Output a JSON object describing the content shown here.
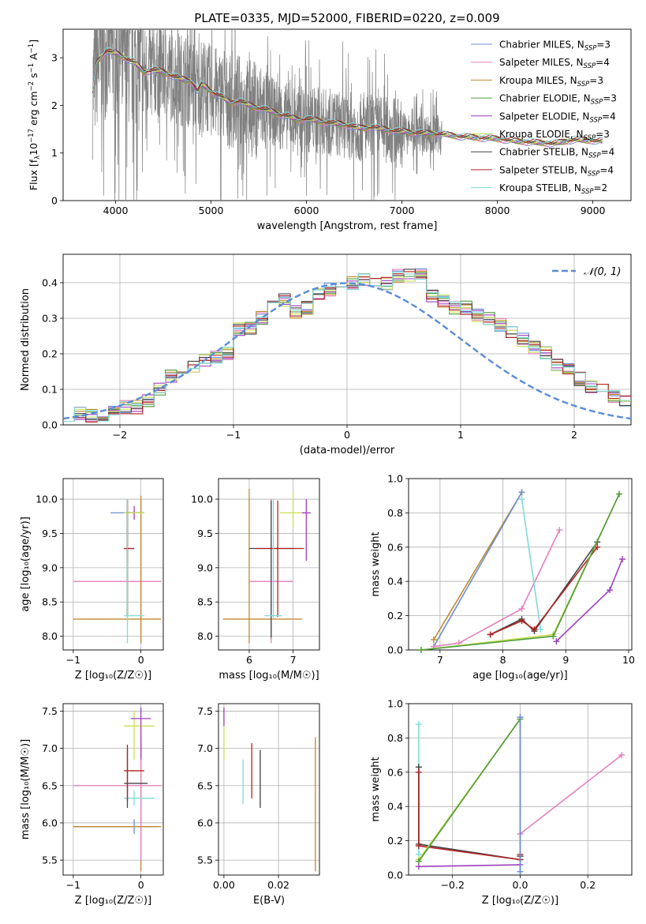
{
  "figure": {
    "title": "PLATE=0335, MJD=52000, FIBERID=0220, z=0.009"
  },
  "series_colors": {
    "Chabrier MILES": "#6b8fd6",
    "Salpeter MILES": "#e57fbf",
    "Kroupa MILES": "#c08a2a",
    "Chabrier ELODIE": "#4f9a3a",
    "Salpeter ELODIE": "#9f3fbf",
    "Kroupa ELODIE": "#c8e050",
    "Chabrier STELIB": "#444444",
    "Salpeter STELIB": "#b22222",
    "Kroupa STELIB": "#7fdada",
    "data": "#808080",
    "gaussian": "#5b8bd6"
  },
  "chart_data": [
    {
      "id": "spectrum",
      "type": "line",
      "title": "PLATE=0335, MJD=52000, FIBERID=0220, z=0.009",
      "xlabel": "wavelength [Angstrom, rest frame]",
      "ylabel_parts": {
        "main": "Flux [f",
        "sub": "λ",
        "mid": "10",
        "sup1": "−17",
        "rest": " erg cm",
        "sup2": "−2",
        "rest2": " s",
        "sup3": "−1",
        "rest3": " A",
        "sup4": "−1",
        "close": "]"
      },
      "xlim": [
        3450,
        9400
      ],
      "ylim": [
        0,
        3.6
      ],
      "xticks": [
        4000,
        5000,
        6000,
        7000,
        8000,
        9000
      ],
      "yticks": [
        0,
        1,
        2,
        3
      ],
      "legend": [
        {
          "name": "Chabrier MILES",
          "n": "3"
        },
        {
          "name": "Salpeter MILES",
          "n": "4"
        },
        {
          "name": "Kroupa MILES",
          "n": "3"
        },
        {
          "name": "Chabrier ELODIE",
          "n": "3"
        },
        {
          "name": "Salpeter ELODIE",
          "n": "4"
        },
        {
          "name": "Kroupa ELODIE",
          "n": "3"
        },
        {
          "name": "Chabrier STELIB",
          "n": "4"
        },
        {
          "name": "Salpeter STELIB",
          "n": "4"
        },
        {
          "name": "Kroupa STELIB",
          "n": "2"
        }
      ],
      "legend_sub": "SSP",
      "legend_placement": "upper-right",
      "model_continuum": [
        [
          3760,
          2.3
        ],
        [
          3800,
          2.9
        ],
        [
          3900,
          3.15
        ],
        [
          4000,
          3.1
        ],
        [
          4100,
          3.0
        ],
        [
          4200,
          2.9
        ],
        [
          4300,
          2.7
        ],
        [
          4400,
          2.75
        ],
        [
          4500,
          2.7
        ],
        [
          4600,
          2.62
        ],
        [
          4700,
          2.55
        ],
        [
          4800,
          2.5
        ],
        [
          4860,
          2.3
        ],
        [
          4900,
          2.45
        ],
        [
          5000,
          2.3
        ],
        [
          5100,
          2.2
        ],
        [
          5200,
          2.05
        ],
        [
          5300,
          2.1
        ],
        [
          5400,
          2.0
        ],
        [
          5500,
          1.95
        ],
        [
          5600,
          1.9
        ],
        [
          5700,
          1.82
        ],
        [
          5800,
          1.78
        ],
        [
          5900,
          1.7
        ],
        [
          6000,
          1.72
        ],
        [
          6200,
          1.65
        ],
        [
          6400,
          1.6
        ],
        [
          6563,
          1.52
        ],
        [
          6700,
          1.55
        ],
        [
          6800,
          1.5
        ],
        [
          7000,
          1.45
        ],
        [
          7200,
          1.42
        ],
        [
          7400,
          1.4
        ],
        [
          7600,
          1.35
        ],
        [
          7800,
          1.32
        ],
        [
          8000,
          1.3
        ],
        [
          8200,
          1.25
        ],
        [
          8400,
          1.22
        ],
        [
          8600,
          1.2
        ],
        [
          8800,
          1.28
        ],
        [
          9000,
          1.26
        ],
        [
          9100,
          1.25
        ]
      ]
    },
    {
      "id": "residuals",
      "type": "step",
      "xlabel": "(data-model)/error",
      "ylabel": "Normed distribution",
      "xlim": [
        -2.5,
        2.5
      ],
      "ylim": [
        0,
        0.48
      ],
      "xticks": [
        -2,
        -1,
        0,
        1,
        2
      ],
      "xtick_labels": [
        "−2",
        "−1",
        "0",
        "1",
        "2"
      ],
      "yticks": [
        0,
        0.1,
        0.2,
        0.3,
        0.4
      ],
      "ytick_labels": [
        "0.0",
        "0.1",
        "0.2",
        "0.3",
        "0.4"
      ],
      "grid": true,
      "legend": [
        {
          "name": "𝒩(0, 1)"
        }
      ],
      "legend_placement": "upper-right",
      "bin_edges_start": -2.5,
      "bin_width": 0.1,
      "histogram_base": [
        0.03,
        0.03,
        0.025,
        0.03,
        0.04,
        0.05,
        0.05,
        0.07,
        0.1,
        0.14,
        0.14,
        0.16,
        0.18,
        0.19,
        0.2,
        0.27,
        0.27,
        0.3,
        0.34,
        0.35,
        0.32,
        0.33,
        0.37,
        0.38,
        0.39,
        0.4,
        0.41,
        0.41,
        0.4,
        0.42,
        0.42,
        0.42,
        0.36,
        0.35,
        0.33,
        0.33,
        0.31,
        0.3,
        0.28,
        0.26,
        0.24,
        0.22,
        0.2,
        0.17,
        0.16,
        0.13,
        0.11,
        0.1,
        0.08,
        0.07
      ]
    },
    {
      "id": "age_vs_Z",
      "type": "errorbar",
      "xlabel": "Z [log₁₀(Z/Z☉)]",
      "ylabel": "age  [log₁₀(age/yr)]",
      "xlim": [
        -1.15,
        0.33
      ],
      "ylim": [
        7.8,
        10.3
      ],
      "xticks": [
        -1,
        0
      ],
      "xtick_labels": [
        "−1",
        "0"
      ],
      "yticks": [
        8.0,
        8.5,
        9.0,
        9.5,
        10.0
      ],
      "ytick_labels": [
        "8.0",
        "8.5",
        "9.0",
        "9.5",
        "10.0"
      ],
      "points": [
        {
          "s": "Chabrier MILES",
          "x": -0.2,
          "y": 9.8,
          "xe": [
            -0.25,
            0.25
          ],
          "ye": [
            -1.5,
            0.2
          ]
        },
        {
          "s": "Salpeter MILES",
          "x": 0.0,
          "y": 8.8,
          "xe": [
            -1.0,
            0.3
          ],
          "ye": [
            -0.9,
            1.2
          ]
        },
        {
          "s": "Kroupa MILES",
          "x": 0.0,
          "y": 8.25,
          "xe": [
            -1.0,
            0.3
          ],
          "ye": [
            -0.35,
            1.8
          ]
        },
        {
          "s": "Chabrier ELODIE",
          "x": -0.2,
          "y": 9.8,
          "xe": [
            -0.05,
            0.25
          ],
          "ye": [
            -1.5,
            0.2
          ]
        },
        {
          "s": "Salpeter ELODIE",
          "x": -0.1,
          "y": 9.8,
          "xe": [
            -0.1,
            0.1
          ],
          "ye": [
            -0.1,
            0.1
          ]
        },
        {
          "s": "Kroupa ELODIE",
          "x": -0.2,
          "y": 9.8,
          "xe": [
            -0.05,
            0.25
          ],
          "ye": [
            -1.5,
            0.2
          ]
        },
        {
          "s": "Chabrier STELIB",
          "x": -0.2,
          "y": 9.28,
          "xe": [
            -0.05,
            0.1
          ],
          "ye": [
            -1.0,
            0.7
          ]
        },
        {
          "s": "Salpeter STELIB",
          "x": -0.2,
          "y": 9.28,
          "xe": [
            -0.05,
            0.1
          ],
          "ye": [
            -0.2,
            0.7
          ]
        },
        {
          "s": "Kroupa STELIB",
          "x": -0.2,
          "y": 8.3,
          "xe": [
            -0.05,
            0.25
          ],
          "ye": [
            -0.4,
            1.7
          ]
        }
      ]
    },
    {
      "id": "age_vs_mass",
      "type": "errorbar",
      "xlabel": "mass [log₁₀(M/M☉)]",
      "ylabel": "",
      "xlim": [
        5.3,
        7.6
      ],
      "ylim": [
        7.8,
        10.3
      ],
      "xticks": [
        6,
        7
      ],
      "xtick_labels": [
        "6",
        "7"
      ],
      "yticks": [
        8.0,
        8.5,
        9.0,
        9.5,
        10.0
      ],
      "ytick_labels": [
        "8.0",
        "8.5",
        "9.0",
        "9.5",
        "10.0"
      ],
      "points": [
        {
          "s": "Kroupa MILES",
          "x": 6.0,
          "y": 8.25,
          "xe": [
            -0.6,
            1.2
          ],
          "ye": [
            -0.35,
            1.9
          ]
        },
        {
          "s": "Salpeter MILES",
          "x": 6.5,
          "y": 8.8,
          "xe": [
            -0.5,
            0.5
          ],
          "ye": [
            -0.9,
            1.2
          ]
        },
        {
          "s": "Chabrier STELIB",
          "x": 6.5,
          "y": 9.28,
          "xe": [
            -0.5,
            0.5
          ],
          "ye": [
            -1.3,
            0.7
          ]
        },
        {
          "s": "Salpeter STELIB",
          "x": 6.65,
          "y": 9.28,
          "xe": [
            -0.5,
            0.6
          ],
          "ye": [
            -1.0,
            0.7
          ]
        },
        {
          "s": "Kroupa STELIB",
          "x": 6.55,
          "y": 8.3,
          "xe": [
            -0.2,
            0.2
          ],
          "ye": [
            -0.05,
            1.7
          ]
        },
        {
          "s": "Kroupa ELODIE",
          "x": 7.0,
          "y": 9.8,
          "xe": [
            -0.3,
            0.3
          ],
          "ye": [
            -0.2,
            0.3
          ]
        },
        {
          "s": "Salpeter ELODIE",
          "x": 7.3,
          "y": 9.8,
          "xe": [
            -0.1,
            0.1
          ],
          "ye": [
            -0.7,
            0.2
          ]
        }
      ]
    },
    {
      "id": "weight_vs_age",
      "type": "line",
      "xlabel": "age  [log₁₀(age/yr)]",
      "ylabel": "mass weight",
      "xlim": [
        6.5,
        10.05
      ],
      "ylim": [
        0,
        1.0
      ],
      "xticks": [
        7,
        8,
        9,
        10
      ],
      "xtick_labels": [
        "7",
        "8",
        "9",
        "10"
      ],
      "yticks": [
        0,
        0.2,
        0.4,
        0.6,
        0.8,
        1.0
      ],
      "ytick_labels": [
        "0.0",
        "0.2",
        "0.4",
        "0.6",
        "0.8",
        "1.0"
      ],
      "grid": true,
      "series": [
        {
          "name": "Kroupa MILES",
          "x": [
            6.9,
            8.3
          ],
          "y": [
            0.06,
            0.92
          ]
        },
        {
          "name": "Chabrier MILES",
          "x": [
            6.9,
            8.3
          ],
          "y": [
            0.02,
            0.92
          ]
        },
        {
          "name": "Salpeter MILES",
          "x": [
            6.9,
            7.3,
            8.3,
            8.9
          ],
          "y": [
            0.02,
            0.04,
            0.24,
            0.7
          ]
        },
        {
          "name": "Kroupa STELIB",
          "x": [
            8.3,
            8.6
          ],
          "y": [
            0.88,
            0.12
          ]
        },
        {
          "name": "Chabrier STELIB",
          "x": [
            7.8,
            8.3,
            8.5,
            9.5
          ],
          "y": [
            0.09,
            0.18,
            0.11,
            0.63
          ]
        },
        {
          "name": "Salpeter STELIB",
          "x": [
            7.8,
            8.3,
            8.5,
            9.5
          ],
          "y": [
            0.09,
            0.17,
            0.12,
            0.6
          ]
        },
        {
          "name": "Kroupa ELODIE",
          "x": [
            6.7,
            8.8,
            9.85
          ],
          "y": [
            0.0,
            0.09,
            0.91
          ]
        },
        {
          "name": "Chabrier ELODIE",
          "x": [
            6.7,
            8.8,
            9.85
          ],
          "y": [
            0.0,
            0.08,
            0.91
          ]
        },
        {
          "name": "Salpeter ELODIE",
          "x": [
            8.85,
            9.7,
            9.9
          ],
          "y": [
            0.05,
            0.35,
            0.53
          ]
        }
      ]
    },
    {
      "id": "mass_vs_Z",
      "type": "errorbar",
      "xlabel": "Z [log₁₀(Z/Z☉)]",
      "ylabel": "mass [log₁₀(M/M☉)]",
      "xlim": [
        -1.15,
        0.33
      ],
      "ylim": [
        5.3,
        7.6
      ],
      "xticks": [
        -1,
        0
      ],
      "xtick_labels": [
        "−1",
        "0"
      ],
      "yticks": [
        5.5,
        6.0,
        6.5,
        7.0,
        7.5
      ],
      "ytick_labels": [
        "5.5",
        "6.0",
        "6.5",
        "7.0",
        "7.5"
      ],
      "points": [
        {
          "s": "Chabrier MILES",
          "x": -0.1,
          "y": 5.95,
          "xe": [
            -0.9,
            0.35
          ],
          "ye": [
            -0.1,
            0.1
          ]
        },
        {
          "s": "Kroupa MILES",
          "x": 0.0,
          "y": 5.95,
          "xe": [
            -1.0,
            0.3
          ],
          "ye": [
            -0.6,
            1.2
          ]
        },
        {
          "s": "Salpeter MILES",
          "x": 0.0,
          "y": 6.5,
          "xe": [
            -1.0,
            0.3
          ],
          "ye": [
            -1.0,
            0.55
          ]
        },
        {
          "s": "Kroupa STELIB",
          "x": -0.1,
          "y": 6.33,
          "xe": [
            -0.15,
            0.3
          ],
          "ye": [
            -0.1,
            0.1
          ]
        },
        {
          "s": "Chabrier STELIB",
          "x": -0.2,
          "y": 6.53,
          "xe": [
            -0.05,
            0.3
          ],
          "ye": [
            -0.33,
            0.45
          ]
        },
        {
          "s": "Salpeter STELIB",
          "x": -0.2,
          "y": 6.7,
          "xe": [
            -0.05,
            0.25
          ],
          "ye": [
            -0.4,
            0.35
          ]
        },
        {
          "s": "Kroupa ELODIE",
          "x": -0.1,
          "y": 7.3,
          "xe": [
            -0.15,
            0.3
          ],
          "ye": [
            -0.45,
            0.2
          ]
        },
        {
          "s": "Salpeter ELODIE",
          "x": 0.0,
          "y": 7.4,
          "xe": [
            -0.15,
            0.15
          ],
          "ye": [
            -0.55,
            0.15
          ]
        }
      ]
    },
    {
      "id": "mass_vs_ebv",
      "type": "errorbar",
      "xlabel": "E(B-V)",
      "ylabel": "",
      "xlim": [
        -0.002,
        0.035
      ],
      "ylim": [
        5.3,
        7.6
      ],
      "xticks": [
        0.0,
        0.02
      ],
      "xtick_labels": [
        "0.00",
        "0.02"
      ],
      "yticks": [
        5.5,
        6.0,
        6.5,
        7.0,
        7.5
      ],
      "ytick_labels": [
        "5.5",
        "6.0",
        "6.5",
        "7.0",
        "7.5"
      ],
      "points": [
        {
          "s": "Kroupa ELODIE",
          "x": 0.0,
          "y": 7.2,
          "ye": [
            -0.35,
            0.3
          ]
        },
        {
          "s": "Salpeter ELODIE",
          "x": 0.0,
          "y": 7.4,
          "ye": [
            -0.1,
            0.15
          ]
        },
        {
          "s": "Kroupa STELIB",
          "x": 0.007,
          "y": 6.55,
          "ye": [
            -0.3,
            0.3
          ]
        },
        {
          "s": "Salpeter STELIB",
          "x": 0.0102,
          "y": 6.7,
          "ye": [
            -0.37,
            0.37
          ]
        },
        {
          "s": "Chabrier STELIB",
          "x": 0.0133,
          "y": 6.6,
          "ye": [
            -0.4,
            0.38
          ]
        },
        {
          "s": "Kroupa MILES",
          "x": 0.0335,
          "y": 6.3,
          "ye": [
            -0.95,
            0.85
          ]
        }
      ]
    },
    {
      "id": "weight_vs_Z",
      "type": "line",
      "xlabel": "Z [log₁₀(Z/Z☉)]",
      "ylabel": "mass weight",
      "xlim": [
        -0.33,
        0.33
      ],
      "ylim": [
        0,
        1.0
      ],
      "xticks": [
        -0.2,
        0.0,
        0.2
      ],
      "xtick_labels": [
        "−0.2",
        "0.0",
        "0.2"
      ],
      "yticks": [
        0,
        0.2,
        0.4,
        0.6,
        0.8,
        1.0
      ],
      "ytick_labels": [
        "0.0",
        "0.2",
        "0.4",
        "0.6",
        "0.8",
        "1.0"
      ],
      "grid": true,
      "series": [
        {
          "name": "Kroupa STELIB",
          "x": [
            -0.3,
            -0.3
          ],
          "y": [
            0.88,
            0.12
          ]
        },
        {
          "name": "Chabrier STELIB",
          "x": [
            -0.3,
            -0.3,
            0.0,
            0.0
          ],
          "y": [
            0.63,
            0.18,
            0.09,
            0.11
          ]
        },
        {
          "name": "Salpeter STELIB",
          "x": [
            -0.3,
            -0.3,
            0.0,
            0.0
          ],
          "y": [
            0.6,
            0.17,
            0.09,
            0.12
          ]
        },
        {
          "name": "Kroupa ELODIE",
          "x": [
            -0.3,
            0.0
          ],
          "y": [
            0.09,
            0.91
          ]
        },
        {
          "name": "Chabrier ELODIE",
          "x": [
            -0.3,
            0.0
          ],
          "y": [
            0.08,
            0.91
          ]
        },
        {
          "name": "Salpeter ELODIE",
          "x": [
            -0.3,
            0.0
          ],
          "y": [
            0.05,
            0.06
          ]
        },
        {
          "name": "Salpeter MILES",
          "x": [
            0.0,
            0.3
          ],
          "y": [
            0.24,
            0.7
          ]
        },
        {
          "name": "Kroupa MILES",
          "x": [
            0.0,
            0.0
          ],
          "y": [
            0.92,
            0.02
          ]
        },
        {
          "name": "Chabrier MILES",
          "x": [
            0.0,
            0.0
          ],
          "y": [
            0.92,
            0.02
          ]
        }
      ]
    }
  ]
}
